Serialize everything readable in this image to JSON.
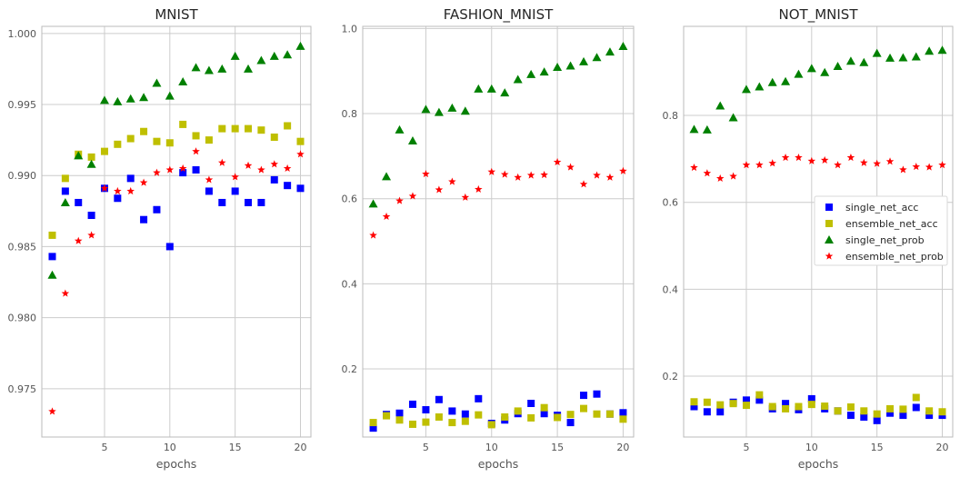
{
  "chart_data": [
    {
      "type": "scatter",
      "title": "MNIST",
      "xlabel": "epochs",
      "ylabel": "",
      "xlim": [
        0.2,
        20.8
      ],
      "ylim": [
        0.9716,
        1.0005
      ],
      "xticks": [
        5,
        10,
        15,
        20
      ],
      "yticks": [
        0.975,
        0.98,
        0.985,
        0.99,
        0.995,
        1.0
      ],
      "ytick_labels": [
        "0.975",
        "0.980",
        "0.985",
        "0.990",
        "0.995",
        "1.000"
      ],
      "grid": true,
      "x": [
        1,
        2,
        3,
        4,
        5,
        6,
        7,
        8,
        9,
        10,
        11,
        12,
        13,
        14,
        15,
        16,
        17,
        18,
        19,
        20
      ],
      "series": [
        {
          "name": "single_net_acc",
          "values": [
            0.9843,
            0.9889,
            0.9881,
            0.9872,
            0.9891,
            0.9884,
            0.9898,
            0.9869,
            0.9876,
            0.985,
            0.9902,
            0.9904,
            0.9889,
            0.9881,
            0.9889,
            0.9881,
            0.9881,
            0.9897,
            0.9893,
            0.9891
          ]
        },
        {
          "name": "ensemble_net_acc",
          "values": [
            0.9858,
            0.9898,
            0.9915,
            0.9913,
            0.9917,
            0.9922,
            0.9926,
            0.9931,
            0.9924,
            0.9923,
            0.9936,
            0.9928,
            0.9925,
            0.9933,
            0.9933,
            0.9933,
            0.9932,
            0.9927,
            0.9935,
            0.9924
          ]
        },
        {
          "name": "single_net_prob",
          "values": [
            0.983,
            0.9881,
            0.9914,
            0.9908,
            0.9953,
            0.9952,
            0.9954,
            0.9955,
            0.9965,
            0.9956,
            0.9966,
            0.9976,
            0.9974,
            0.9975,
            0.9984,
            0.9975,
            0.9981,
            0.9984,
            0.9985,
            0.9991
          ]
        },
        {
          "name": "ensemble_net_prob",
          "values": [
            0.9734,
            0.9817,
            0.9854,
            0.9858,
            0.9891,
            0.9889,
            0.9889,
            0.9895,
            0.9902,
            0.9904,
            0.9905,
            0.9917,
            0.9897,
            0.9909,
            0.9899,
            0.9907,
            0.9904,
            0.9908,
            0.9905,
            0.9915
          ]
        }
      ]
    },
    {
      "type": "scatter",
      "title": "FASHION_MNIST",
      "xlabel": "epochs",
      "ylabel": "",
      "xlim": [
        0.2,
        20.8
      ],
      "ylim": [
        0.04,
        1.005
      ],
      "xticks": [
        5,
        10,
        15,
        20
      ],
      "yticks": [
        0.2,
        0.4,
        0.6,
        0.8,
        1.0
      ],
      "ytick_labels": [
        "0.2",
        "0.4",
        "0.6",
        "0.8",
        "1.0"
      ],
      "grid": true,
      "x": [
        1,
        2,
        3,
        4,
        5,
        6,
        7,
        8,
        9,
        10,
        11,
        12,
        13,
        14,
        15,
        16,
        17,
        18,
        19,
        20
      ],
      "series": [
        {
          "name": "single_net_acc",
          "values": [
            0.061,
            0.093,
            0.096,
            0.117,
            0.104,
            0.128,
            0.101,
            0.094,
            0.13,
            0.072,
            0.08,
            0.095,
            0.119,
            0.095,
            0.091,
            0.074,
            0.138,
            0.141,
            0.094,
            0.097
          ]
        },
        {
          "name": "ensemble_net_acc",
          "values": [
            0.074,
            0.09,
            0.08,
            0.07,
            0.075,
            0.087,
            0.074,
            0.077,
            0.092,
            0.069,
            0.087,
            0.101,
            0.085,
            0.109,
            0.086,
            0.093,
            0.107,
            0.094,
            0.094,
            0.082
          ]
        },
        {
          "name": "single_net_prob",
          "values": [
            0.588,
            0.652,
            0.762,
            0.736,
            0.81,
            0.803,
            0.813,
            0.806,
            0.858,
            0.858,
            0.849,
            0.88,
            0.892,
            0.898,
            0.909,
            0.912,
            0.922,
            0.932,
            0.945,
            0.958
          ]
        },
        {
          "name": "ensemble_net_prob",
          "values": [
            0.514,
            0.558,
            0.595,
            0.606,
            0.658,
            0.621,
            0.64,
            0.603,
            0.622,
            0.663,
            0.657,
            0.65,
            0.655,
            0.656,
            0.686,
            0.674,
            0.634,
            0.655,
            0.65,
            0.665
          ]
        }
      ]
    },
    {
      "type": "scatter",
      "title": "NOT_MNIST",
      "xlabel": "epochs",
      "ylabel": "",
      "xlim": [
        0.2,
        20.8
      ],
      "ylim": [
        0.06,
        1.005
      ],
      "xticks": [
        5,
        10,
        15,
        20
      ],
      "yticks": [
        0.2,
        0.4,
        0.6,
        0.8
      ],
      "ytick_labels": [
        "0.2",
        "0.4",
        "0.6",
        "0.8"
      ],
      "grid": true,
      "x": [
        1,
        2,
        3,
        4,
        5,
        6,
        7,
        8,
        9,
        10,
        11,
        12,
        13,
        14,
        15,
        16,
        17,
        18,
        19,
        20
      ],
      "legend": {
        "placement": "center-right"
      },
      "series": [
        {
          "name": "single_net_acc",
          "values": [
            0.13,
            0.118,
            0.118,
            0.14,
            0.145,
            0.145,
            0.125,
            0.137,
            0.123,
            0.148,
            0.125,
            0.12,
            0.11,
            0.106,
            0.098,
            0.115,
            0.11,
            0.128,
            0.11,
            0.11
          ]
        },
        {
          "name": "ensemble_net_acc",
          "values": [
            0.141,
            0.14,
            0.134,
            0.137,
            0.133,
            0.157,
            0.13,
            0.125,
            0.13,
            0.135,
            0.131,
            0.12,
            0.129,
            0.12,
            0.113,
            0.125,
            0.124,
            0.151,
            0.12,
            0.118
          ]
        },
        {
          "name": "single_net_prob",
          "values": [
            0.768,
            0.767,
            0.822,
            0.795,
            0.86,
            0.866,
            0.876,
            0.878,
            0.895,
            0.908,
            0.899,
            0.913,
            0.925,
            0.922,
            0.943,
            0.932,
            0.933,
            0.935,
            0.948,
            0.95
          ]
        },
        {
          "name": "ensemble_net_prob",
          "values": [
            0.68,
            0.667,
            0.655,
            0.66,
            0.686,
            0.686,
            0.69,
            0.703,
            0.703,
            0.695,
            0.697,
            0.686,
            0.703,
            0.691,
            0.689,
            0.694,
            0.675,
            0.682,
            0.681,
            0.686
          ]
        }
      ]
    }
  ],
  "colors": {
    "single_net_acc": "#0000ff",
    "ensemble_net_acc": "#bfbf00",
    "single_net_prob": "#008000",
    "ensemble_net_prob": "#ff0000",
    "grid": "#cccccc",
    "spine": "#bbbbbb"
  },
  "icons": {
    "single_net_acc": "square-marker-icon",
    "ensemble_net_acc": "square-marker-icon",
    "single_net_prob": "triangle-marker-icon",
    "ensemble_net_prob": "star-marker-icon"
  }
}
